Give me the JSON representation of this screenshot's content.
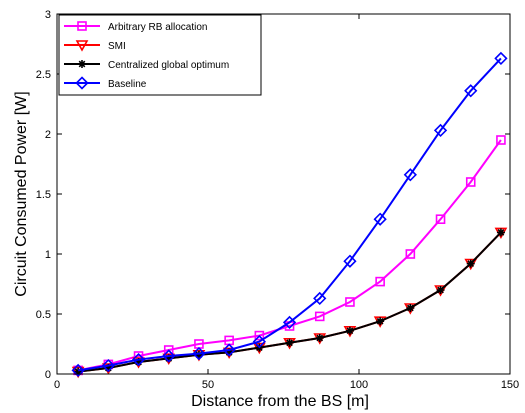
{
  "chart_data": {
    "type": "line",
    "xlabel": "Distance from the BS [m]",
    "ylabel": "Circuit Consumed Power [W]",
    "xlim": [
      0,
      150
    ],
    "ylim": [
      0,
      3
    ],
    "xticks": [
      0,
      50,
      100,
      150
    ],
    "yticks": [
      0,
      0.5,
      1,
      1.5,
      2,
      2.5,
      3
    ],
    "ytick_labels": [
      "0",
      "0.5",
      "1",
      "1.5",
      "2",
      "2.5",
      "3"
    ],
    "grid": false,
    "legend_position": "top-left",
    "x": [
      7,
      17,
      27,
      37,
      47,
      57,
      67,
      77,
      87,
      97,
      107,
      117,
      127,
      137,
      147
    ],
    "series": [
      {
        "name": "Arbitrary RB allocation",
        "color": "#ff00ff",
        "marker": "square",
        "values": [
          0.03,
          0.08,
          0.15,
          0.2,
          0.25,
          0.28,
          0.32,
          0.4,
          0.48,
          0.6,
          0.77,
          1.0,
          1.29,
          1.6,
          1.95
        ]
      },
      {
        "name": "SMI",
        "color": "#ff0000",
        "marker": "triangle-down",
        "values": [
          0.02,
          0.05,
          0.1,
          0.13,
          0.16,
          0.18,
          0.22,
          0.26,
          0.3,
          0.36,
          0.44,
          0.55,
          0.7,
          0.92,
          1.18
        ]
      },
      {
        "name": "Centralized global optimum",
        "color": "#000000",
        "marker": "asterisk",
        "values": [
          0.02,
          0.05,
          0.1,
          0.13,
          0.16,
          0.18,
          0.22,
          0.26,
          0.3,
          0.36,
          0.44,
          0.55,
          0.7,
          0.92,
          1.18
        ]
      },
      {
        "name": "Baseline",
        "color": "#0000ff",
        "marker": "diamond",
        "values": [
          0.03,
          0.07,
          0.12,
          0.15,
          0.17,
          0.2,
          0.27,
          0.43,
          0.63,
          0.94,
          1.29,
          1.66,
          2.03,
          2.36,
          2.63
        ]
      }
    ]
  }
}
